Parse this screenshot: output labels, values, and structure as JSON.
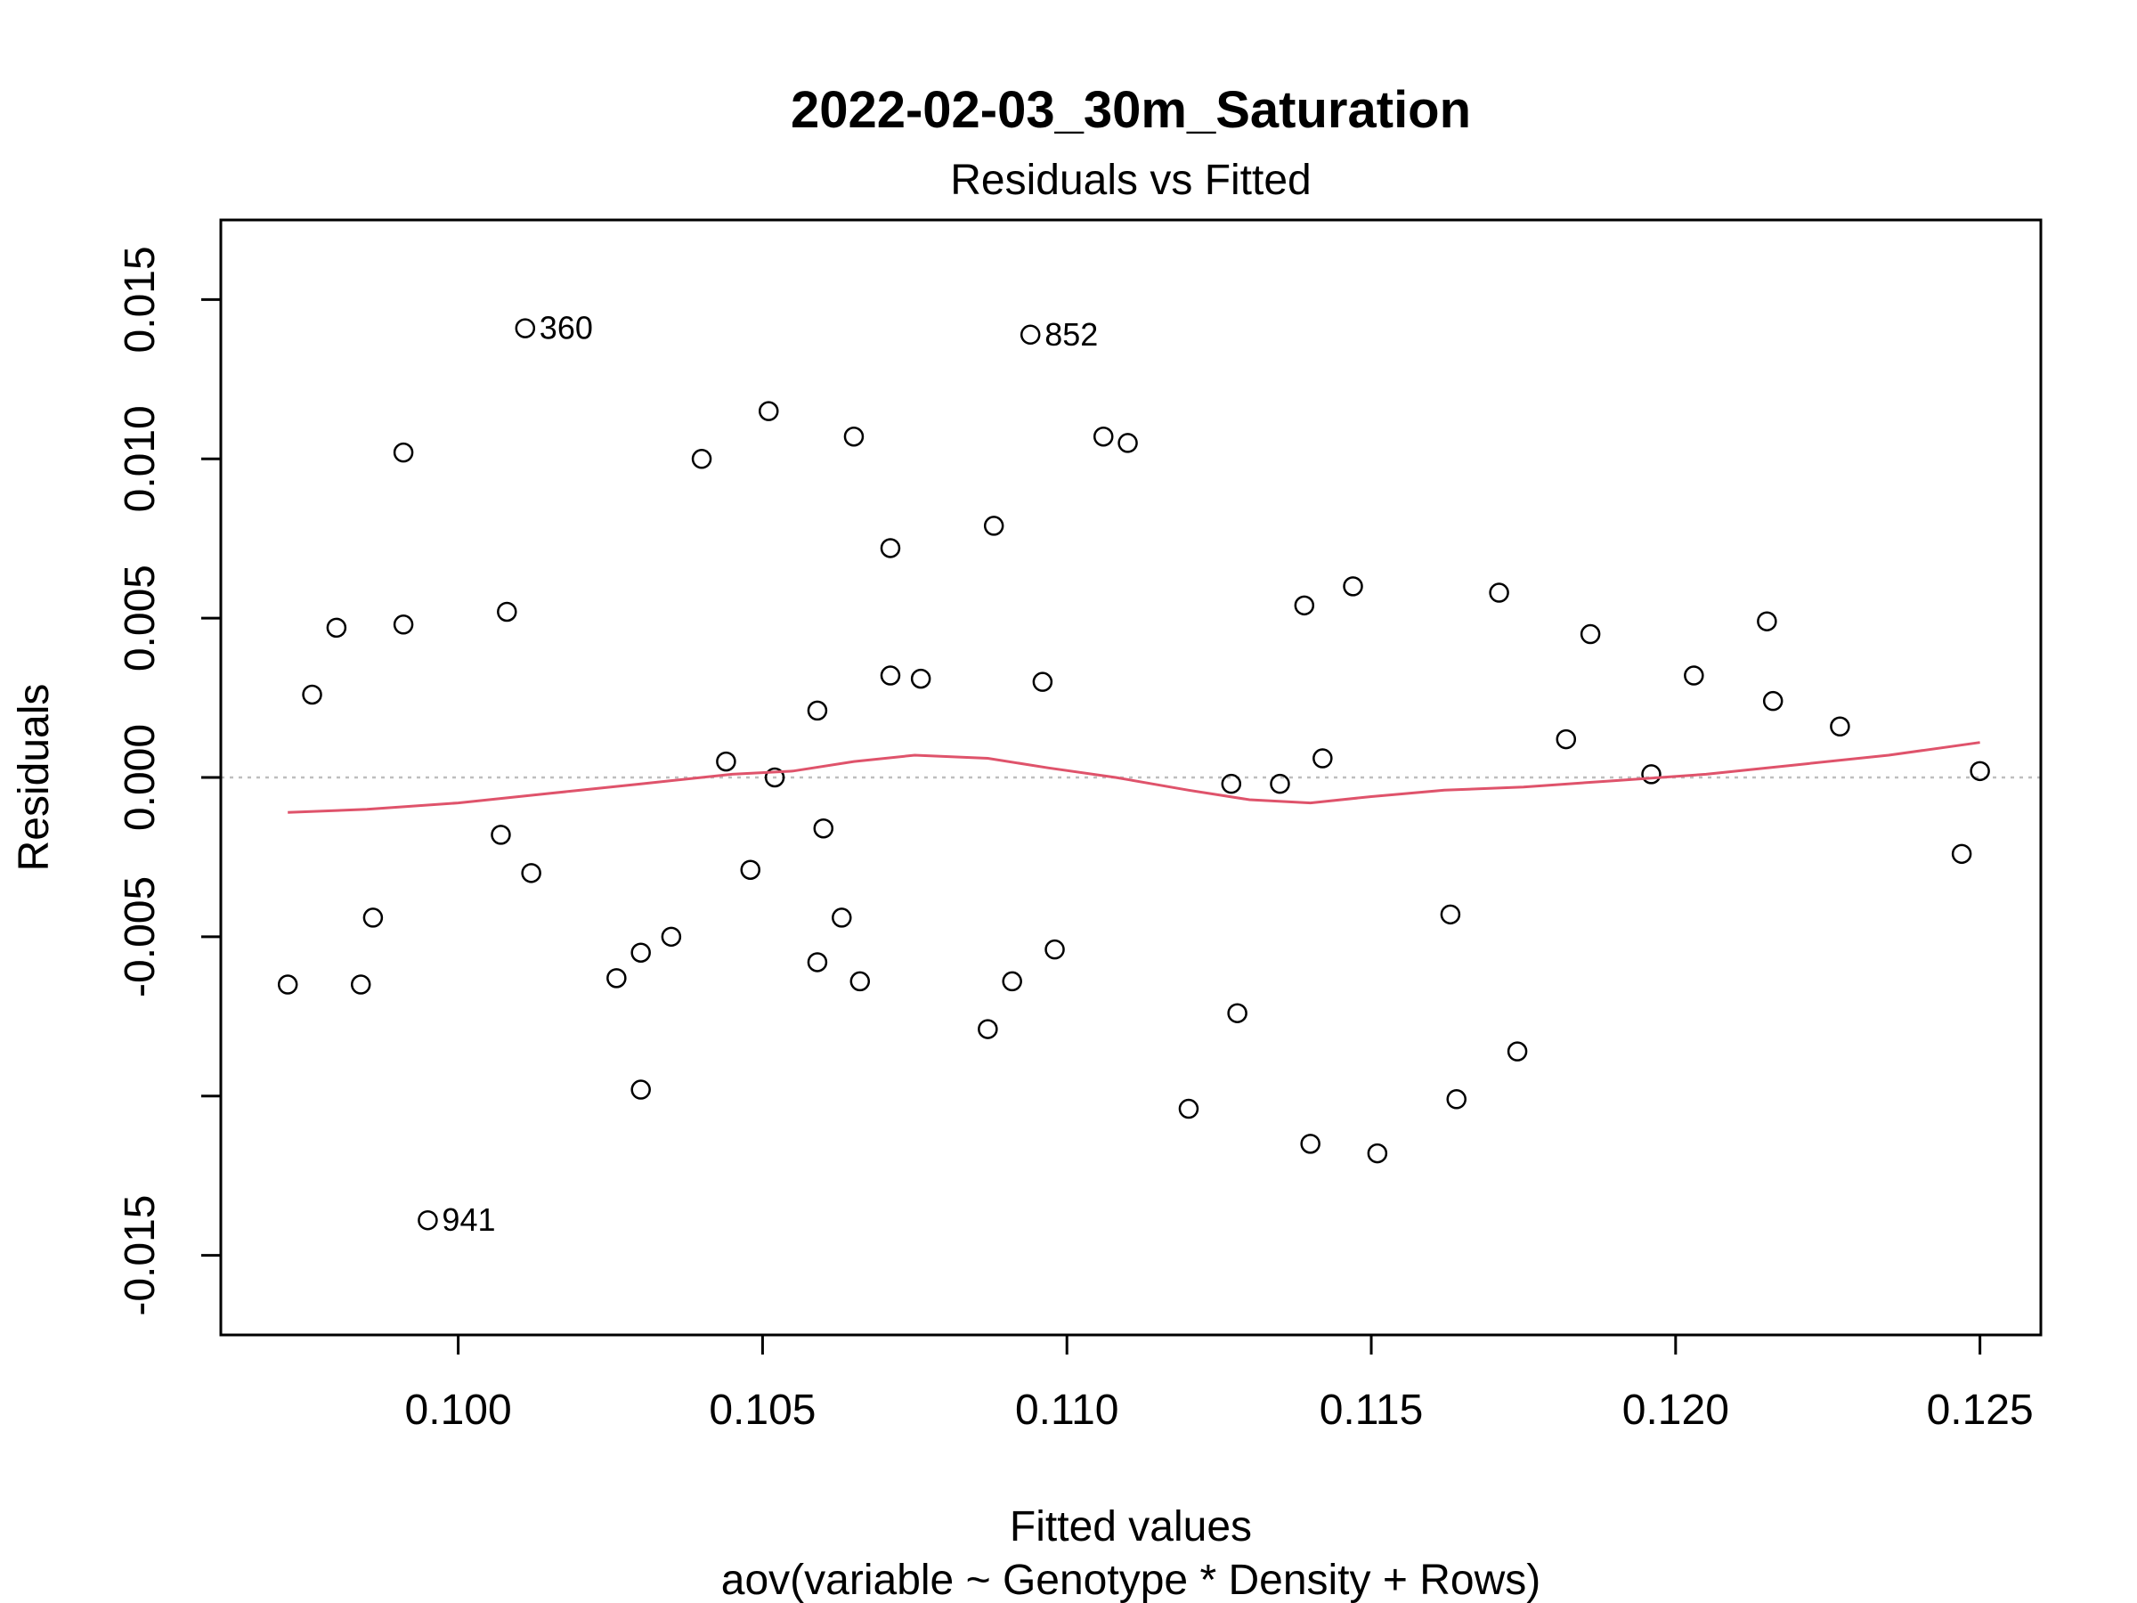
{
  "chart_data": {
    "type": "scatter",
    "title": "2022-02-03_30m_Saturation",
    "subtitle": "Residuals vs Fitted",
    "xlabel": "Fitted values",
    "xlabel_sub": "aov(variable ~ Genotype * Density + Rows)",
    "ylabel": "Residuals",
    "xlim": [
      0.0961,
      0.126
    ],
    "ylim": [
      -0.0175,
      0.0175
    ],
    "x_ticks": [
      0.1,
      0.105,
      0.11,
      0.115,
      0.12,
      0.125
    ],
    "x_tick_labels": [
      "0.100",
      "0.105",
      "0.110",
      "0.115",
      "0.120",
      "0.125"
    ],
    "y_ticks": [
      -0.015,
      -0.01,
      -0.005,
      0.0,
      0.005,
      0.01,
      0.015
    ],
    "y_tick_labels": [
      "-0.015",
      "",
      "-0.005",
      "0.000",
      "0.005",
      "0.010",
      "0.015"
    ],
    "reference_line": {
      "y": 0,
      "color": "#BEBEBE",
      "style": "dotted"
    },
    "smooth_color": "#DF536B",
    "point_color": "#000000",
    "points": [
      {
        "x": 0.0972,
        "y": -0.0065
      },
      {
        "x": 0.0976,
        "y": 0.0026
      },
      {
        "x": 0.098,
        "y": 0.0047
      },
      {
        "x": 0.0984,
        "y": -0.0065
      },
      {
        "x": 0.0986,
        "y": -0.0044
      },
      {
        "x": 0.0991,
        "y": 0.0102
      },
      {
        "x": 0.0991,
        "y": 0.0048
      },
      {
        "x": 0.0995,
        "y": -0.0139,
        "label": "941"
      },
      {
        "x": 0.1007,
        "y": -0.0018
      },
      {
        "x": 0.1008,
        "y": 0.0052
      },
      {
        "x": 0.1011,
        "y": 0.0141,
        "label": "360"
      },
      {
        "x": 0.1012,
        "y": -0.003
      },
      {
        "x": 0.1026,
        "y": -0.0063
      },
      {
        "x": 0.103,
        "y": -0.0055
      },
      {
        "x": 0.103,
        "y": -0.0098
      },
      {
        "x": 0.1035,
        "y": -0.005
      },
      {
        "x": 0.104,
        "y": 0.01
      },
      {
        "x": 0.1044,
        "y": 0.0005
      },
      {
        "x": 0.1048,
        "y": -0.0029
      },
      {
        "x": 0.1051,
        "y": 0.0115
      },
      {
        "x": 0.1052,
        "y": 0.0
      },
      {
        "x": 0.1059,
        "y": 0.0021
      },
      {
        "x": 0.1059,
        "y": -0.0058
      },
      {
        "x": 0.106,
        "y": -0.0016
      },
      {
        "x": 0.1063,
        "y": -0.0044
      },
      {
        "x": 0.1065,
        "y": 0.0107
      },
      {
        "x": 0.1066,
        "y": -0.0064
      },
      {
        "x": 0.1071,
        "y": 0.0032
      },
      {
        "x": 0.1071,
        "y": 0.0072
      },
      {
        "x": 0.1076,
        "y": 0.0031
      },
      {
        "x": 0.1087,
        "y": -0.0079
      },
      {
        "x": 0.1088,
        "y": 0.0079
      },
      {
        "x": 0.1091,
        "y": -0.0064
      },
      {
        "x": 0.1094,
        "y": 0.0139,
        "label": "852"
      },
      {
        "x": 0.1096,
        "y": 0.003
      },
      {
        "x": 0.1098,
        "y": -0.0054
      },
      {
        "x": 0.1106,
        "y": 0.0107
      },
      {
        "x": 0.111,
        "y": 0.0105
      },
      {
        "x": 0.112,
        "y": -0.0104
      },
      {
        "x": 0.1127,
        "y": -0.0002
      },
      {
        "x": 0.1128,
        "y": -0.0074
      },
      {
        "x": 0.1135,
        "y": -0.0002
      },
      {
        "x": 0.1139,
        "y": 0.0054
      },
      {
        "x": 0.114,
        "y": -0.0115
      },
      {
        "x": 0.1142,
        "y": 0.0006
      },
      {
        "x": 0.1147,
        "y": 0.006
      },
      {
        "x": 0.1151,
        "y": -0.0118
      },
      {
        "x": 0.1163,
        "y": -0.0043
      },
      {
        "x": 0.1164,
        "y": -0.0101
      },
      {
        "x": 0.1171,
        "y": 0.0058
      },
      {
        "x": 0.1174,
        "y": -0.0086
      },
      {
        "x": 0.1182,
        "y": 0.0012
      },
      {
        "x": 0.1186,
        "y": 0.0045
      },
      {
        "x": 0.1196,
        "y": 0.0001
      },
      {
        "x": 0.1203,
        "y": 0.0032
      },
      {
        "x": 0.1215,
        "y": 0.0049
      },
      {
        "x": 0.1216,
        "y": 0.0024
      },
      {
        "x": 0.1227,
        "y": 0.0016
      },
      {
        "x": 0.1247,
        "y": -0.0024
      },
      {
        "x": 0.125,
        "y": 0.0002
      }
    ],
    "smooth": [
      {
        "x": 0.0972,
        "y": -0.0011
      },
      {
        "x": 0.0985,
        "y": -0.001
      },
      {
        "x": 0.1,
        "y": -0.0008
      },
      {
        "x": 0.1015,
        "y": -0.0005
      },
      {
        "x": 0.103,
        "y": -0.0002
      },
      {
        "x": 0.1045,
        "y": 0.0001
      },
      {
        "x": 0.1055,
        "y": 0.0002
      },
      {
        "x": 0.1065,
        "y": 0.0005
      },
      {
        "x": 0.1075,
        "y": 0.0007
      },
      {
        "x": 0.1087,
        "y": 0.0006
      },
      {
        "x": 0.1097,
        "y": 0.0003
      },
      {
        "x": 0.1108,
        "y": 0.0
      },
      {
        "x": 0.112,
        "y": -0.0004
      },
      {
        "x": 0.113,
        "y": -0.0007
      },
      {
        "x": 0.114,
        "y": -0.0008
      },
      {
        "x": 0.115,
        "y": -0.0006
      },
      {
        "x": 0.1162,
        "y": -0.0004
      },
      {
        "x": 0.1175,
        "y": -0.0003
      },
      {
        "x": 0.119,
        "y": -0.0001
      },
      {
        "x": 0.1205,
        "y": 0.0001
      },
      {
        "x": 0.122,
        "y": 0.0004
      },
      {
        "x": 0.1235,
        "y": 0.0007
      },
      {
        "x": 0.125,
        "y": 0.0011
      }
    ]
  }
}
